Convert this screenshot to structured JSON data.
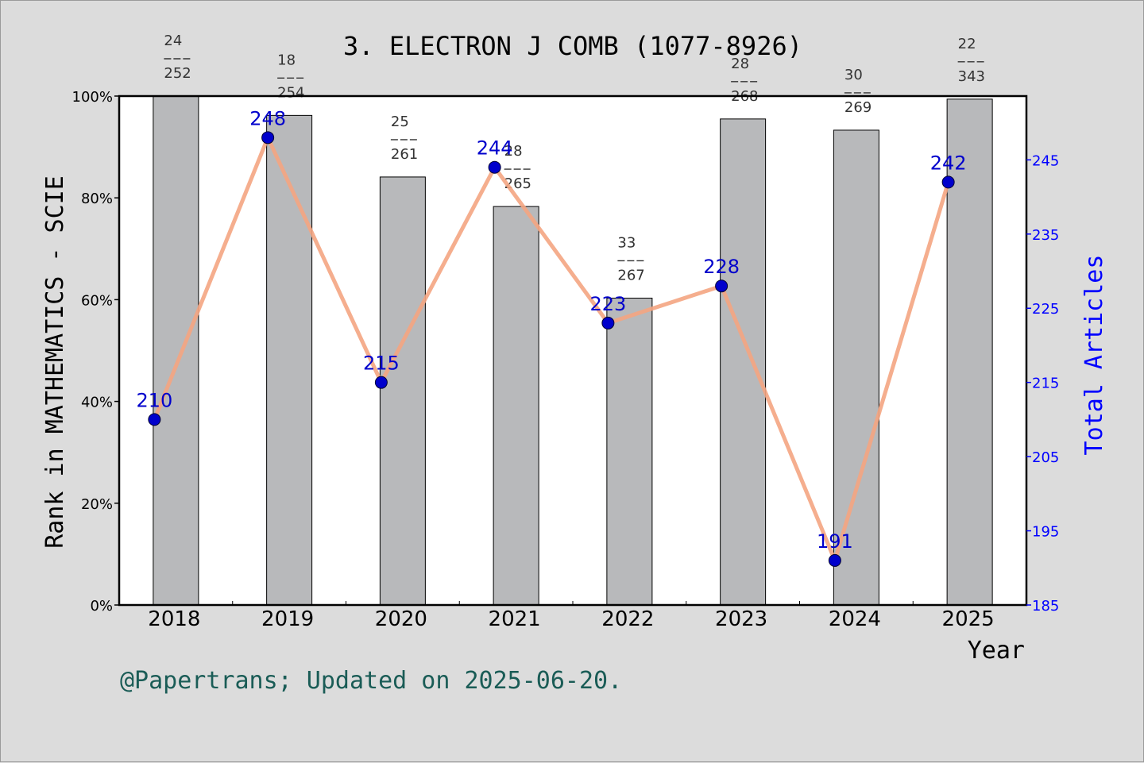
{
  "chart_data": {
    "type": "bar",
    "title": "3. ELECTRON J COMB (1077-8926)",
    "xlabel": "Year",
    "ylabel_left": "Rank in MATHEMATICS - SCIE",
    "ylabel_right": "Total Articles",
    "categories": [
      "2018",
      "2019",
      "2020",
      "2021",
      "2022",
      "2023",
      "2024",
      "2025"
    ],
    "y_left_ticks": [
      "0%",
      "20%",
      "40%",
      "60%",
      "80%",
      "100%"
    ],
    "y_left_lim": [
      0,
      100
    ],
    "y_right_ticks": [
      "185",
      "195",
      "205",
      "215",
      "225",
      "235",
      "245"
    ],
    "y_right_lim": [
      185,
      253.6
    ],
    "series": [
      {
        "kind": "bar",
        "values": [
          100.0,
          96.2,
          84.1,
          78.3,
          60.3,
          95.5,
          93.3,
          99.4
        ],
        "rank": [
          "24",
          "18",
          "25",
          "28",
          "33",
          "28",
          "30",
          "22"
        ],
        "total": [
          "252",
          "254",
          "261",
          "265",
          "267",
          "268",
          "269",
          "343"
        ],
        "color": "#b8b9bb"
      },
      {
        "kind": "line",
        "values": [
          210,
          248,
          215,
          244,
          223,
          228,
          191,
          242
        ],
        "labels": [
          "210",
          "248",
          "215",
          "244",
          "223",
          "228",
          "191",
          "242"
        ],
        "line_color": "#f4a582",
        "marker_color": "#0000cc"
      }
    ],
    "footer": "@Papertrans; Updated on 2025-06-20.",
    "colors": {
      "background": "#dcdcdc",
      "plot_bg": "#ffffff",
      "right_axis": "#0000ff",
      "footer_text": "#1a5c56"
    }
  }
}
